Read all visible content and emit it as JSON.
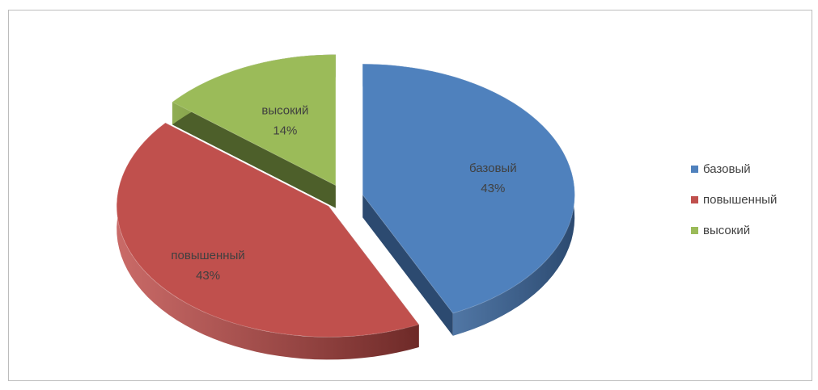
{
  "chart_data": {
    "type": "pie",
    "style": "3d-exploded",
    "categories": [
      "базовый",
      "повышенный",
      "высокий"
    ],
    "values": [
      43,
      43,
      14
    ],
    "labels": [
      "43%",
      "43%",
      "14%"
    ],
    "colors": [
      "#4f81bd",
      "#c0504d",
      "#9bbb59"
    ],
    "side_colors": [
      "#2c4a70",
      "#6e2a28",
      "#4d5f2a"
    ],
    "legend": {
      "position": "right",
      "entries": [
        "базовый",
        "повышенный",
        "высокий"
      ]
    }
  }
}
